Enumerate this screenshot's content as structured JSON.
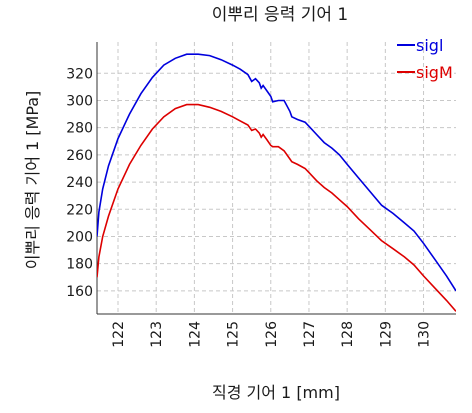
{
  "chart_data": {
    "type": "line",
    "title": "이뿌리 응력 기어 1",
    "xlabel": "직경 기어 1 [mm]",
    "ylabel": "이뿌리 응력 기어 1 [MPa]",
    "xlim": [
      121.45,
      130.85
    ],
    "ylim": [
      143,
      343
    ],
    "x_ticks": [
      122,
      123,
      124,
      125,
      126,
      127,
      128,
      129,
      130
    ],
    "y_ticks": [
      160,
      180,
      200,
      220,
      240,
      260,
      280,
      300,
      320
    ],
    "grid": true,
    "legend_position": "top-right",
    "series": [
      {
        "name": "sigl",
        "color": "#0000dd",
        "x": [
          121.45,
          121.5,
          121.6,
          121.75,
          122.0,
          122.3,
          122.6,
          122.9,
          123.2,
          123.5,
          123.8,
          124.1,
          124.4,
          124.7,
          125.0,
          125.2,
          125.4,
          125.5,
          125.6,
          125.7,
          125.75,
          125.8,
          125.9,
          126.0,
          126.05,
          126.2,
          126.35,
          126.5,
          126.55,
          126.7,
          126.9,
          127.0,
          127.2,
          127.4,
          127.6,
          127.8,
          128.0,
          128.3,
          128.6,
          128.9,
          129.2,
          129.5,
          129.75,
          130.0,
          130.3,
          130.6,
          130.85
        ],
        "y": [
          200,
          218,
          235,
          252,
          272,
          290,
          305,
          317,
          326,
          331,
          334,
          334,
          333,
          330,
          326,
          323,
          319,
          314,
          316,
          313,
          309,
          311,
          307,
          303,
          299,
          300,
          300,
          292,
          288,
          286,
          284,
          281,
          275,
          269,
          265,
          260,
          253,
          243,
          233,
          223,
          217,
          210,
          204,
          195,
          183,
          171,
          160
        ]
      },
      {
        "name": "sigM",
        "color": "#dd0000",
        "x": [
          121.45,
          121.5,
          121.6,
          121.75,
          122.0,
          122.3,
          122.6,
          122.9,
          123.2,
          123.5,
          123.8,
          124.1,
          124.4,
          124.7,
          125.0,
          125.2,
          125.4,
          125.5,
          125.6,
          125.7,
          125.75,
          125.8,
          125.9,
          126.0,
          126.05,
          126.2,
          126.35,
          126.5,
          126.55,
          126.7,
          126.9,
          127.0,
          127.2,
          127.4,
          127.6,
          127.8,
          128.0,
          128.3,
          128.6,
          128.9,
          129.2,
          129.5,
          129.75,
          130.0,
          130.3,
          130.6,
          130.85
        ],
        "y": [
          170,
          185,
          200,
          215,
          235,
          253,
          267,
          279,
          288,
          294,
          297,
          297,
          295,
          292,
          288,
          285,
          282,
          278,
          279,
          276,
          273,
          275,
          271,
          267,
          266,
          266,
          263,
          257,
          255,
          253,
          250,
          247,
          241,
          236,
          232,
          227,
          222,
          213,
          205,
          197,
          191,
          185,
          179,
          171,
          162,
          153,
          145
        ]
      }
    ]
  }
}
